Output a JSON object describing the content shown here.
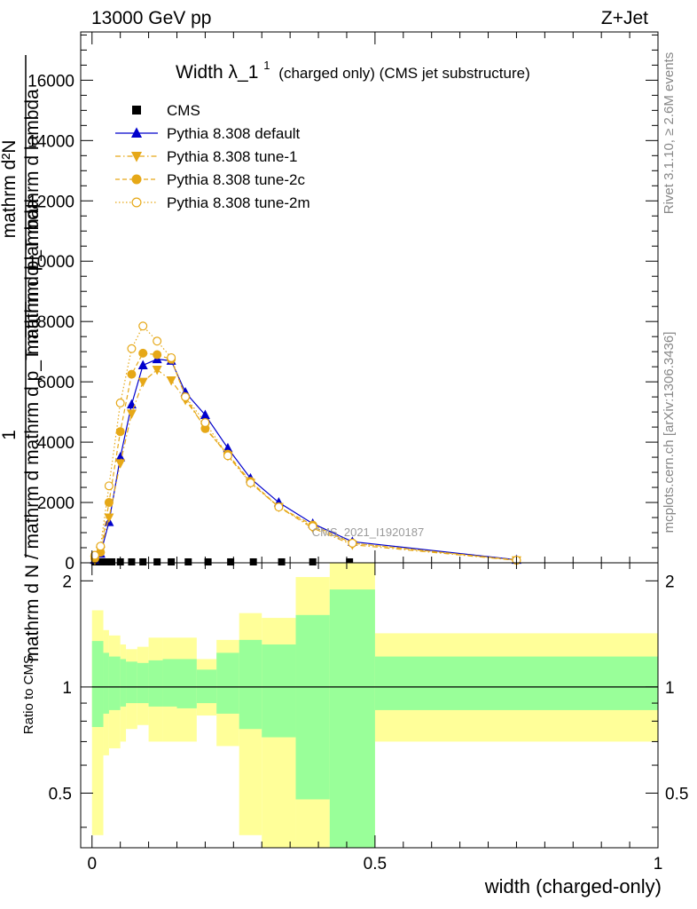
{
  "header": {
    "left": "13000 GeV pp",
    "right": "Z+Jet"
  },
  "side_text": {
    "rivet": "Rivet 3.1.10, ≥ 2.6M events",
    "mcplots": "mcplots.cern.ch [arXiv:1306.3436]"
  },
  "watermark": "CMS_2021_I1920187",
  "chart_data": [
    {
      "type": "line",
      "title_main": "Width λ_1",
      "title_sup": "1",
      "title_rest": "(charged only) (CMS jet substructure)",
      "ylabel_numerator": "mathrm d²N",
      "ylabel_den_top": "mathrm d p_T mathrm d lambda",
      "ylabel_one": "1",
      "ylabel_den_bottom": "mathrm d N / mathrm d mathrm d p_T mathrm d lambda",
      "xlim": [
        -0.02,
        1.0
      ],
      "ylim": [
        0,
        17600
      ],
      "yticks": [
        0,
        2000,
        4000,
        6000,
        8000,
        10000,
        12000,
        14000,
        16000
      ],
      "legend_position": "top-left",
      "legend": [
        {
          "label": "CMS",
          "color": "#000000",
          "marker": "square",
          "style": "none"
        },
        {
          "label": "Pythia 8.308 default",
          "color": "#0000cc",
          "marker": "triangle-up",
          "style": "solid"
        },
        {
          "label": "Pythia 8.308 tune-1",
          "color": "#e6a817",
          "marker": "triangle-down",
          "style": "dashdot"
        },
        {
          "label": "Pythia 8.308 tune-2c",
          "color": "#e6a817",
          "marker": "circle",
          "style": "dashed"
        },
        {
          "label": "Pythia 8.308 tune-2m",
          "color": "#e6a817",
          "marker": "circle-open",
          "style": "dotted"
        }
      ],
      "series": [
        {
          "name": "CMS",
          "x": [
            0.005,
            0.015,
            0.025,
            0.035,
            0.05,
            0.07,
            0.09,
            0.115,
            0.14,
            0.17,
            0.205,
            0.245,
            0.285,
            0.335,
            0.39,
            0.455
          ],
          "y": [
            30,
            30,
            30,
            30,
            30,
            30,
            30,
            30,
            30,
            30,
            30,
            30,
            30,
            30,
            30,
            30
          ]
        },
        {
          "name": "Pythia 8.308 default",
          "x": [
            0.005,
            0.015,
            0.03,
            0.05,
            0.07,
            0.09,
            0.115,
            0.14,
            0.165,
            0.2,
            0.24,
            0.28,
            0.33,
            0.39,
            0.46,
            0.75
          ],
          "y": [
            100,
            300,
            1350,
            3500,
            5250,
            6550,
            6750,
            6700,
            5650,
            4900,
            3800,
            2800,
            2000,
            1300,
            700,
            100
          ]
        },
        {
          "name": "Pythia 8.308 tune-1",
          "x": [
            0.005,
            0.015,
            0.03,
            0.05,
            0.07,
            0.09,
            0.115,
            0.14,
            0.165,
            0.2,
            0.24,
            0.28,
            0.33,
            0.39,
            0.46,
            0.75
          ],
          "y": [
            100,
            400,
            1500,
            3300,
            4950,
            6000,
            6400,
            6050,
            5400,
            4500,
            3550,
            2650,
            1850,
            1150,
            600,
            80
          ]
        },
        {
          "name": "Pythia 8.308 tune-2c",
          "x": [
            0.005,
            0.015,
            0.03,
            0.05,
            0.07,
            0.09,
            0.115,
            0.14,
            0.165,
            0.2,
            0.24,
            0.28,
            0.33,
            0.39,
            0.46,
            0.75
          ],
          "y": [
            150,
            350,
            2000,
            4350,
            6250,
            6950,
            6900,
            6750,
            5500,
            4450,
            3600,
            2700,
            1850,
            1250,
            650,
            90
          ]
        },
        {
          "name": "Pythia 8.308 tune-2m",
          "x": [
            0.005,
            0.015,
            0.03,
            0.05,
            0.07,
            0.09,
            0.115,
            0.14,
            0.165,
            0.2,
            0.24,
            0.28,
            0.33,
            0.39,
            0.46,
            0.75
          ],
          "y": [
            250,
            550,
            2550,
            5300,
            7100,
            7850,
            7350,
            6800,
            5500,
            4650,
            3550,
            2650,
            1850,
            1200,
            650,
            85
          ]
        }
      ]
    },
    {
      "type": "area",
      "ylabel": "Ratio to CMS",
      "xlabel": "width (charged-only)",
      "xlim": [
        -0.02,
        1.0
      ],
      "ylim": [
        0.35,
        2.25
      ],
      "xticks": [
        0,
        0.5,
        1
      ],
      "xtick_labels": [
        "0",
        "0.5",
        "1"
      ],
      "yticks": [
        0.5,
        1,
        2
      ],
      "ytick_labels": [
        "0.5",
        "1",
        "2"
      ],
      "reference_line": 1,
      "bands": {
        "bin_edges": [
          0,
          0.02,
          0.03,
          0.05,
          0.06,
          0.08,
          0.1,
          0.125,
          0.15,
          0.185,
          0.22,
          0.26,
          0.3,
          0.36,
          0.42,
          0.5,
          1.0
        ],
        "green_upper": [
          1.35,
          1.25,
          1.22,
          1.2,
          1.18,
          1.17,
          1.19,
          1.2,
          1.2,
          1.12,
          1.25,
          1.36,
          1.32,
          1.6,
          1.89,
          1.22
        ],
        "green_lower": [
          0.77,
          0.84,
          0.86,
          0.88,
          0.9,
          0.9,
          0.88,
          0.88,
          0.87,
          0.9,
          0.84,
          0.76,
          0.72,
          0.48,
          0.35,
          0.86
        ],
        "yellow_upper": [
          1.65,
          1.45,
          1.4,
          1.32,
          1.28,
          1.3,
          1.38,
          1.38,
          1.38,
          1.2,
          1.36,
          1.62,
          1.57,
          2.05,
          2.25,
          1.42
        ],
        "yellow_lower": [
          0.38,
          0.64,
          0.67,
          0.7,
          0.76,
          0.78,
          0.7,
          0.7,
          0.7,
          0.83,
          0.68,
          0.38,
          0.3,
          0.3,
          0.35,
          0.7
        ]
      }
    }
  ]
}
